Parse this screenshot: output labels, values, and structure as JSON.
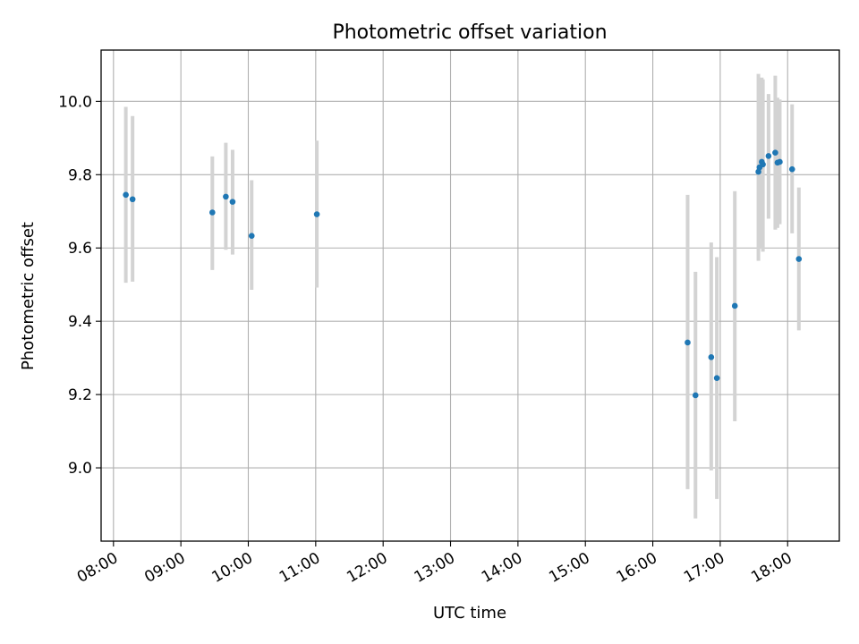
{
  "chart_data": {
    "type": "scatter",
    "title": "Photometric offset variation",
    "xlabel": "UTC time",
    "ylabel": "Photometric offset",
    "xlim": [
      "07:49",
      "18:46"
    ],
    "ylim": [
      8.8,
      10.14
    ],
    "grid": true,
    "x_ticks": [
      "08:00",
      "09:00",
      "10:00",
      "11:00",
      "12:00",
      "13:00",
      "14:00",
      "15:00",
      "16:00",
      "17:00",
      "18:00"
    ],
    "y_ticks": [
      "9.0",
      "9.2",
      "9.4",
      "9.6",
      "9.8",
      "10.0"
    ],
    "points": [
      {
        "time": "08:11",
        "y": 9.745,
        "err_low": 9.505,
        "err_high": 9.985
      },
      {
        "time": "08:17",
        "y": 9.733,
        "err_low": 9.508,
        "err_high": 9.96
      },
      {
        "time": "09:28",
        "y": 9.697,
        "err_low": 9.54,
        "err_high": 9.85
      },
      {
        "time": "09:40",
        "y": 9.74,
        "err_low": 9.595,
        "err_high": 9.887
      },
      {
        "time": "09:46",
        "y": 9.726,
        "err_low": 9.582,
        "err_high": 9.868
      },
      {
        "time": "10:03",
        "y": 9.633,
        "err_low": 9.486,
        "err_high": 9.785
      },
      {
        "time": "11:01",
        "y": 9.692,
        "err_low": 9.492,
        "err_high": 9.893
      },
      {
        "time": "16:31",
        "y": 9.342,
        "err_low": 8.942,
        "err_high": 9.745
      },
      {
        "time": "16:38",
        "y": 9.198,
        "err_low": 8.862,
        "err_high": 9.535
      },
      {
        "time": "16:52",
        "y": 9.302,
        "err_low": 8.993,
        "err_high": 9.615
      },
      {
        "time": "16:57",
        "y": 9.245,
        "err_low": 8.915,
        "err_high": 9.575
      },
      {
        "time": "17:13",
        "y": 9.442,
        "err_low": 9.127,
        "err_high": 9.755
      },
      {
        "time": "17:34",
        "y": 9.808,
        "err_low": 9.565,
        "err_high": 10.075
      },
      {
        "time": "17:35",
        "y": 9.82,
        "err_low": 9.6,
        "err_high": 10.04
      },
      {
        "time": "17:37",
        "y": 9.835,
        "err_low": 9.62,
        "err_high": 10.065
      },
      {
        "time": "17:38",
        "y": 9.828,
        "err_low": 9.59,
        "err_high": 10.06
      },
      {
        "time": "17:43",
        "y": 9.851,
        "err_low": 9.68,
        "err_high": 10.02
      },
      {
        "time": "17:49",
        "y": 9.86,
        "err_low": 9.65,
        "err_high": 10.07
      },
      {
        "time": "17:51",
        "y": 9.833,
        "err_low": 9.655,
        "err_high": 10.01
      },
      {
        "time": "17:53",
        "y": 9.835,
        "err_low": 9.665,
        "err_high": 10.005
      },
      {
        "time": "18:04",
        "y": 9.815,
        "err_low": 9.64,
        "err_high": 9.992
      },
      {
        "time": "18:10",
        "y": 9.57,
        "err_low": 9.375,
        "err_high": 9.765
      }
    ],
    "colors": {
      "marker": "#1f77b4",
      "errorbar": "#d3d3d3",
      "grid": "#b0b0b0",
      "axes": "#000000"
    }
  }
}
